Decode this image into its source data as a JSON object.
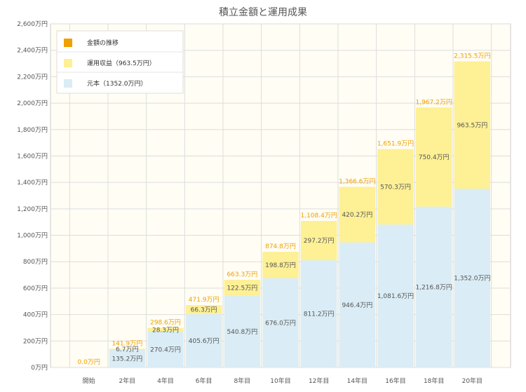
{
  "chart_data": {
    "type": "bar",
    "stacked": true,
    "title": "積立金額と運用成果",
    "categories": [
      "開始",
      "2年目",
      "4年目",
      "6年目",
      "8年目",
      "10年目",
      "12年目",
      "14年目",
      "16年目",
      "18年目",
      "20年目"
    ],
    "series": [
      {
        "name": "元本（1352.0万円）",
        "color": "#daecf5",
        "values": [
          0,
          135.2,
          270.4,
          405.6,
          540.8,
          676.0,
          811.2,
          946.4,
          1081.6,
          1216.8,
          1352.0
        ],
        "labels": [
          "",
          "135.2万円",
          "270.4万円",
          "405.6万円",
          "540.8万円",
          "676.0万円",
          "811.2万円",
          "946.4万円",
          "1,081.6万円",
          "1,216.8万円",
          "1,352.0万円"
        ]
      },
      {
        "name": "運用収益（963.5万円）",
        "color": "#fdf095",
        "values": [
          0,
          6.7,
          28.3,
          66.3,
          122.5,
          198.8,
          297.2,
          420.2,
          570.3,
          750.4,
          963.5
        ],
        "labels": [
          "",
          "6.7万円",
          "28.3万円",
          "66.3万円",
          "122.5万円",
          "198.8万円",
          "297.2万円",
          "420.2万円",
          "570.3万円",
          "750.4万円",
          "963.5万円"
        ]
      },
      {
        "name": "金額の推移",
        "color": "#f0a000",
        "type": "line-marker"
      }
    ],
    "totals": [
      "0.0万円",
      "141.9万円",
      "298.6万円",
      "471.9万円",
      "663.3万円",
      "874.8万円",
      "1,108.4万円",
      "1,366.6万円",
      "1,651.9万円",
      "1,967.2万円",
      "2,315.5万円"
    ],
    "ylim": [
      0,
      2600
    ],
    "yticks": [
      0,
      200,
      400,
      600,
      800,
      1000,
      1200,
      1400,
      1600,
      1800,
      2000,
      2200,
      2400,
      2600
    ],
    "ytick_labels": [
      "0万円",
      "200万円",
      "400万円",
      "600万円",
      "800万円",
      "1,000万円",
      "1,200万円",
      "1,400万円",
      "1,600万円",
      "1,800万円",
      "2,000万円",
      "2,200万円",
      "2,400万円",
      "2,600万円"
    ],
    "grid": true,
    "legend_position": "top-left"
  }
}
